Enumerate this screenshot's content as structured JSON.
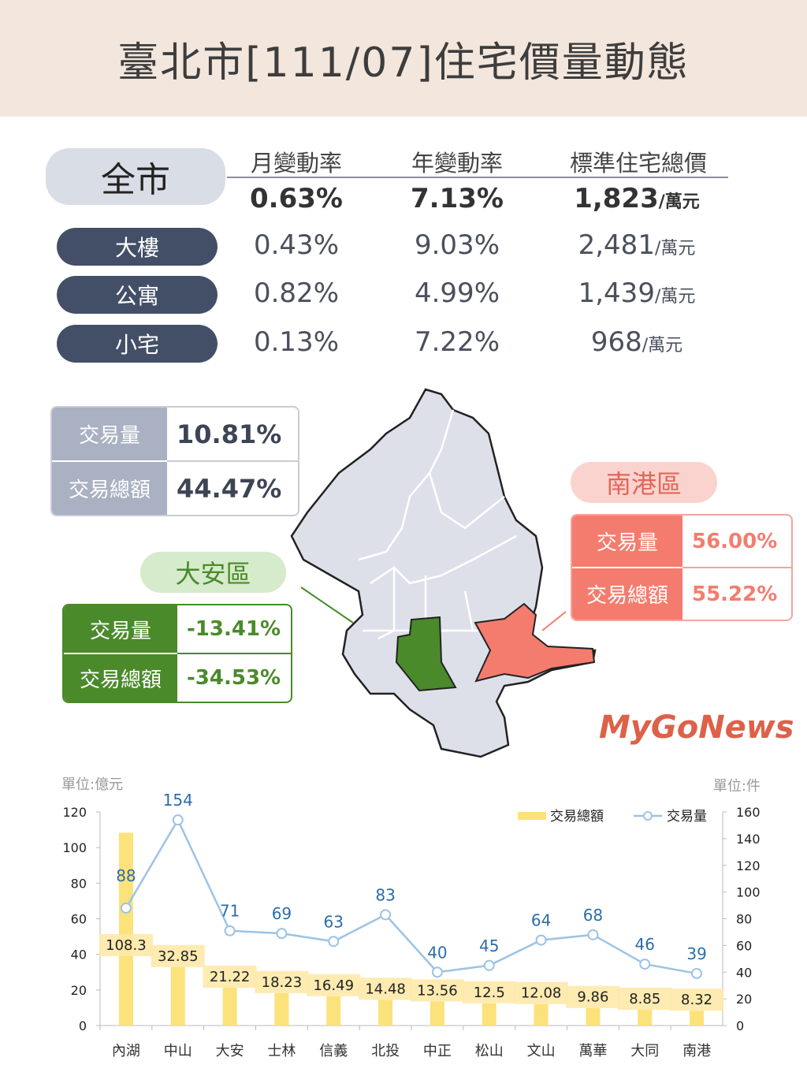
{
  "title": "臺北市[111/07]住宅價量動態",
  "summary": {
    "headers": [
      "月變動率",
      "年變動率",
      "標準住宅總價"
    ],
    "unit": "/萬元",
    "rows": [
      {
        "label": "全市",
        "mom": "0.63%",
        "yoy": "7.13%",
        "price": "1,823"
      },
      {
        "label": "大樓",
        "mom": "0.43%",
        "yoy": "9.03%",
        "price": "2,481"
      },
      {
        "label": "公寓",
        "mom": "0.82%",
        "yoy": "4.99%",
        "price": "1,439"
      },
      {
        "label": "小宅",
        "mom": "0.13%",
        "yoy": "7.22%",
        "price": "968"
      }
    ]
  },
  "city_box": {
    "vol_label": "交易量",
    "vol": "10.81%",
    "amt_label": "交易總額",
    "amt": "44.47%"
  },
  "daan": {
    "name": "大安區",
    "vol_label": "交易量",
    "vol": "-13.41%",
    "amt_label": "交易總額",
    "amt": "-34.53%",
    "color": "#4a8a2a"
  },
  "nangang": {
    "name": "南港區",
    "vol_label": "交易量",
    "vol": "56.00%",
    "amt_label": "交易總額",
    "amt": "55.22%",
    "color": "#f47c6e"
  },
  "watermark": "MyGoNews",
  "chart_data": {
    "type": "bar+line",
    "left_unit": "單位:億元",
    "right_unit": "單位:件",
    "categories": [
      "內湖",
      "中山",
      "大安",
      "士林",
      "信義",
      "北投",
      "中正",
      "松山",
      "文山",
      "萬華",
      "大同",
      "南港"
    ],
    "series": [
      {
        "name": "交易總額",
        "type": "bar",
        "axis": "left",
        "color": "#fce27a",
        "values": [
          108.3,
          32.85,
          21.22,
          18.23,
          16.49,
          14.48,
          13.56,
          12.5,
          12.08,
          9.86,
          8.85,
          8.32
        ]
      },
      {
        "name": "交易量",
        "type": "line",
        "axis": "right",
        "color": "#9cc3e6",
        "values": [
          88,
          154,
          71,
          69,
          63,
          83,
          40,
          45,
          64,
          68,
          46,
          39
        ]
      }
    ],
    "ylim_left": [
      0,
      120
    ],
    "yticks_left": [
      0,
      20,
      40,
      60,
      80,
      100,
      120
    ],
    "ylim_right": [
      0,
      160
    ],
    "yticks_right": [
      0,
      20,
      40,
      60,
      80,
      100,
      120,
      140,
      160
    ],
    "legend": "top-right"
  }
}
